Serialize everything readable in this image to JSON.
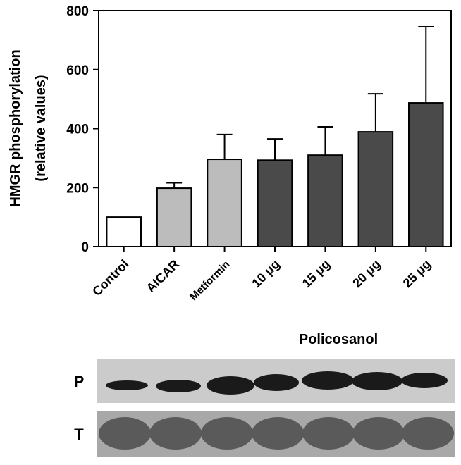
{
  "chart_data": {
    "type": "bar",
    "ylabel": [
      "HMGR phosphorylation",
      "(relative values)"
    ],
    "categories": [
      "Control",
      "AICAR",
      "Metformin",
      "10 μg",
      "15 μg",
      "20 μg",
      "25 μg"
    ],
    "values": [
      100,
      198,
      296,
      293,
      310,
      389,
      487
    ],
    "errors": [
      null,
      18,
      84,
      72,
      96,
      129,
      258
    ],
    "colors": [
      "#ffffff",
      "#bcbcbc",
      "#bcbcbc",
      "#4a4a4a",
      "#4a4a4a",
      "#4a4a4a",
      "#4a4a4a"
    ],
    "ylim": [
      0,
      800
    ],
    "yticks": [
      0,
      200,
      400,
      600,
      800
    ],
    "grid": false
  },
  "blot": {
    "group_label": "Policosanol",
    "rows": [
      "P",
      "T"
    ]
  }
}
